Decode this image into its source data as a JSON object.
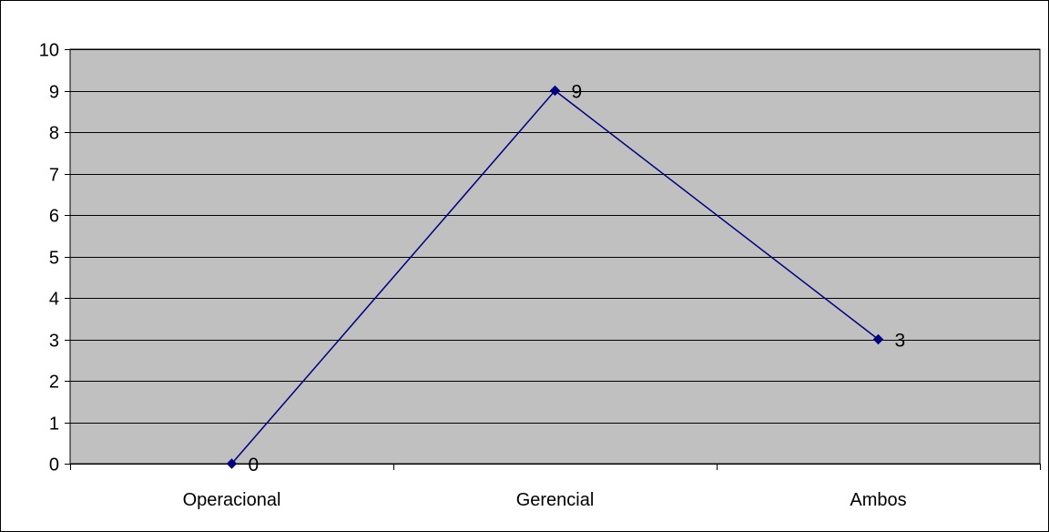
{
  "chart_data": {
    "type": "line",
    "categories": [
      "Operacional",
      "Gerencial",
      "Ambos"
    ],
    "series": [
      {
        "values": [
          0,
          9,
          3
        ]
      }
    ],
    "ylim": [
      0,
      10
    ],
    "yticks": [
      0,
      1,
      2,
      3,
      4,
      5,
      6,
      7,
      8,
      9,
      10
    ],
    "grid": true,
    "legend": "none",
    "data_labels": true,
    "colors": {
      "plot_background": "#c0c0c0",
      "line": "#000080",
      "marker": "#000080",
      "gridlines": "#000000",
      "frame": "#000000"
    }
  }
}
